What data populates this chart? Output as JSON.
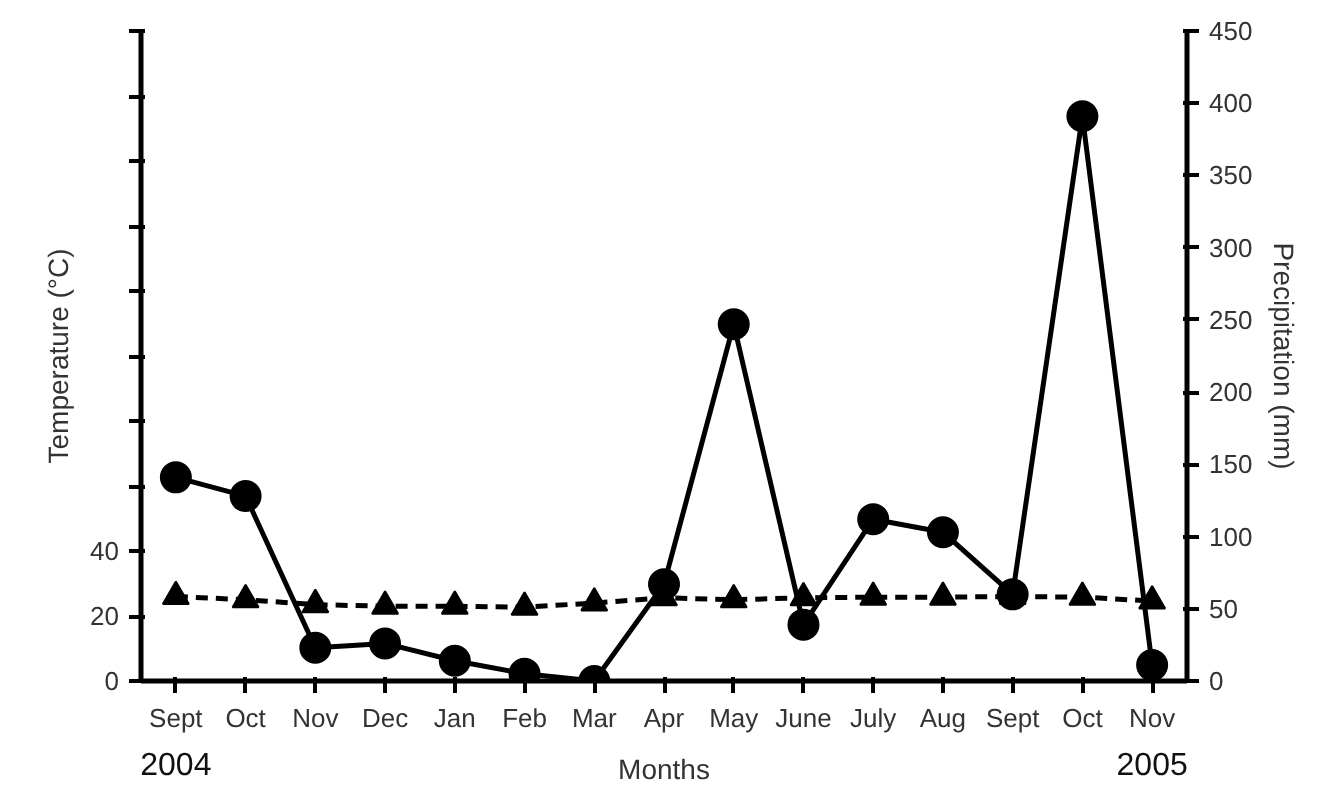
{
  "chart_data": {
    "type": "line",
    "xlabel": "Months",
    "ylabel": "Temperature (°C)",
    "y2label": "Precipitation (mm)",
    "categories": [
      "Sept",
      "Oct",
      "Nov",
      "Dec",
      "Jan",
      "Feb",
      "Mar",
      "Apr",
      "May",
      "June",
      "July",
      "Aug",
      "Sept",
      "Oct",
      "Nov"
    ],
    "series": [
      {
        "color": "#000000",
        "marker": "circle",
        "line_style": "solid",
        "axis": "y2",
        "values": [
          141,
          128,
          23,
          26,
          14,
          5,
          0,
          67,
          247,
          39,
          112,
          103,
          60,
          391,
          11
        ]
      },
      {
        "color": "#000000",
        "marker": "triangle",
        "line_style": "dashed",
        "values": [
          26,
          25,
          23.5,
          23,
          23,
          22.7,
          24,
          25.6,
          25,
          25.6,
          25.8,
          25.8,
          26,
          25.8,
          24.6
        ]
      }
    ],
    "ylim": [
      0,
      200
    ],
    "yticks": [
      0,
      20,
      40,
      {
        "value": 60,
        "label": null
      },
      {
        "value": 80,
        "label": null
      },
      {
        "value": 100,
        "label": null
      },
      {
        "value": 120,
        "label": null
      },
      {
        "value": 140,
        "label": null
      },
      {
        "value": 160,
        "label": null
      },
      {
        "value": 180,
        "label": null
      },
      {
        "value": 200,
        "label": null
      }
    ],
    "y2lim": [
      0,
      450
    ],
    "y2ticks": [
      0,
      50,
      100,
      150,
      200,
      250,
      300,
      350,
      400,
      450
    ],
    "annotations": [
      "2004",
      "2005"
    ],
    "grid": false
  }
}
